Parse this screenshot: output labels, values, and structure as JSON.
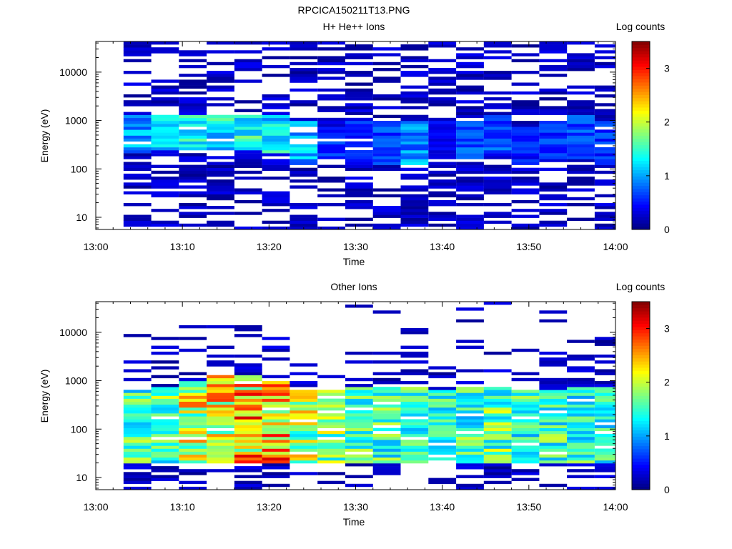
{
  "page_title": "RPCICA150211T13.PNG",
  "panels": [
    {
      "title": "H+ He++ Ions",
      "xlabel": "Time",
      "ylabel": "Energy (eV)",
      "colorbar_label": "Log counts"
    },
    {
      "title": "Other Ions",
      "xlabel": "Time",
      "ylabel": "Energy (eV)",
      "colorbar_label": "Log counts"
    }
  ],
  "chart_data": [
    {
      "type": "heatmap",
      "title": "H+ He++ Ions",
      "xlabel": "Time",
      "ylabel": "Energy (eV)",
      "x_ticks": [
        "13:00",
        "13:10",
        "13:20",
        "13:30",
        "13:40",
        "13:50",
        "14:00"
      ],
      "y_ticks": [
        "10",
        "100",
        "1000",
        "10000"
      ],
      "y_scale": "log",
      "ylim": [
        5.6,
        43000
      ],
      "x_range_minutes": [
        0,
        60
      ],
      "colorbar": {
        "label": "Log counts",
        "ticks": [
          "0",
          "1",
          "2",
          "3"
        ],
        "range": [
          0,
          3.5
        ],
        "colormap": "jet"
      },
      "time_bins_start_minutes": [
        3.2,
        6.4,
        9.6,
        12.8,
        16.0,
        19.2,
        22.4,
        25.6,
        28.8,
        32.0,
        35.2,
        38.4,
        41.6,
        44.8,
        48.0,
        51.2,
        54.4,
        57.6
      ],
      "column_profiles": [
        {
          "core_log10_energy": [
            2.3,
            3.1
          ],
          "core_log_counts": 1.1
        },
        {
          "core_log10_energy": [
            2.4,
            3.1
          ],
          "core_log_counts": 1.3
        },
        {
          "core_log10_energy": [
            2.4,
            3.1
          ],
          "core_log_counts": 1.5
        },
        {
          "core_log10_energy": [
            2.4,
            3.1
          ],
          "core_log_counts": 1.5
        },
        {
          "core_log10_energy": [
            2.4,
            3.1
          ],
          "core_log_counts": 1.6
        },
        {
          "core_log10_energy": [
            2.3,
            3.1
          ],
          "core_log_counts": 1.5
        },
        {
          "core_log10_energy": [
            2.1,
            3.0
          ],
          "core_log_counts": 1.2
        },
        {
          "core_log10_energy": [
            2.2,
            2.9
          ],
          "core_log_counts": 0.7
        },
        {
          "core_log10_energy": [
            2.1,
            3.0
          ],
          "core_log_counts": 0.7
        },
        {
          "core_log10_energy": [
            2.1,
            3.0
          ],
          "core_log_counts": 0.8
        },
        {
          "core_log10_energy": [
            2.1,
            3.0
          ],
          "core_log_counts": 1.1
        },
        {
          "core_log10_energy": [
            2.2,
            3.0
          ],
          "core_log_counts": 0.5
        },
        {
          "core_log10_energy": [
            2.2,
            3.0
          ],
          "core_log_counts": 0.9
        },
        {
          "core_log10_energy": [
            2.3,
            3.1
          ],
          "core_log_counts": 0.8
        },
        {
          "core_log10_energy": [
            2.1,
            2.9
          ],
          "core_log_counts": 0.6
        },
        {
          "core_log10_energy": [
            2.2,
            3.0
          ],
          "core_log_counts": 0.7
        },
        {
          "core_log10_energy": [
            2.2,
            3.1
          ],
          "core_log_counts": 0.8
        },
        {
          "core_log10_energy": [
            2.1,
            3.0
          ],
          "core_log_counts": 0.7
        }
      ]
    },
    {
      "type": "heatmap",
      "title": "Other Ions",
      "xlabel": "Time",
      "ylabel": "Energy (eV)",
      "x_ticks": [
        "13:00",
        "13:10",
        "13:20",
        "13:30",
        "13:40",
        "13:50",
        "14:00"
      ],
      "y_ticks": [
        "10",
        "100",
        "1000",
        "10000"
      ],
      "y_scale": "log",
      "ylim": [
        5.6,
        43000
      ],
      "x_range_minutes": [
        0,
        60
      ],
      "colorbar": {
        "label": "Log counts",
        "ticks": [
          "0",
          "1",
          "2",
          "3"
        ],
        "range": [
          0,
          3.5
        ],
        "colormap": "jet"
      },
      "time_bins_start_minutes": [
        3.2,
        6.4,
        9.6,
        12.8,
        16.0,
        19.2,
        22.4,
        25.6,
        28.8,
        32.0,
        35.2,
        38.4,
        41.6,
        44.8,
        48.0,
        51.2,
        54.4,
        57.6
      ],
      "column_profiles": [
        {
          "core_log10_energy": [
            1.3,
            2.8
          ],
          "core_log_counts": 1.8
        },
        {
          "core_log10_energy": [
            1.3,
            2.9
          ],
          "core_log_counts": 1.9
        },
        {
          "core_log10_energy": [
            1.3,
            3.0
          ],
          "core_log_counts": 2.4
        },
        {
          "core_log10_energy": [
            1.3,
            3.1
          ],
          "core_log_counts": 2.5
        },
        {
          "core_log10_energy": [
            1.3,
            3.1
          ],
          "core_log_counts": 2.8
        },
        {
          "core_log10_energy": [
            1.3,
            3.0
          ],
          "core_log_counts": 2.8
        },
        {
          "core_log10_energy": [
            1.3,
            2.8
          ],
          "core_log_counts": 2.2
        },
        {
          "core_log10_energy": [
            1.3,
            2.9
          ],
          "core_log_counts": 2.0
        },
        {
          "core_log10_energy": [
            1.3,
            2.9
          ],
          "core_log_counts": 1.8
        },
        {
          "core_log10_energy": [
            1.3,
            2.9
          ],
          "core_log_counts": 1.8
        },
        {
          "core_log10_energy": [
            1.3,
            2.9
          ],
          "core_log_counts": 1.7
        },
        {
          "core_log10_energy": [
            1.3,
            2.8
          ],
          "core_log_counts": 1.6
        },
        {
          "core_log10_energy": [
            1.3,
            2.9
          ],
          "core_log_counts": 1.8
        },
        {
          "core_log10_energy": [
            1.3,
            2.9
          ],
          "core_log_counts": 1.9
        },
        {
          "core_log10_energy": [
            1.3,
            2.8
          ],
          "core_log_counts": 1.7
        },
        {
          "core_log10_energy": [
            1.3,
            2.8
          ],
          "core_log_counts": 1.8
        },
        {
          "core_log10_energy": [
            1.3,
            2.9
          ],
          "core_log_counts": 1.7
        },
        {
          "core_log10_energy": [
            1.3,
            2.9
          ],
          "core_log_counts": 1.6
        }
      ]
    }
  ]
}
